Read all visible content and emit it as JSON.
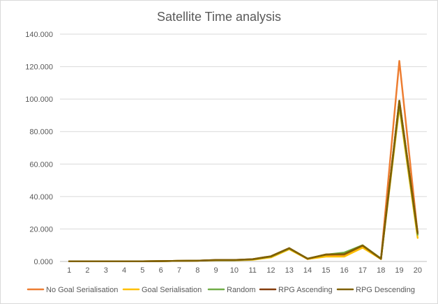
{
  "chart_data": {
    "type": "line",
    "title": "Satellite Time analysis",
    "xlabel": "",
    "ylabel": "",
    "categories": [
      "1",
      "2",
      "3",
      "4",
      "5",
      "6",
      "7",
      "8",
      "9",
      "10",
      "11",
      "12",
      "13",
      "14",
      "15",
      "16",
      "17",
      "18",
      "19",
      "20"
    ],
    "ylim": [
      0,
      140
    ],
    "yticks": [
      0,
      20,
      40,
      60,
      80,
      100,
      120,
      140
    ],
    "ytick_labels": [
      "0.000",
      "20.000",
      "40.000",
      "60.000",
      "80.000",
      "100.000",
      "120.000",
      "140.000"
    ],
    "grid": true,
    "legend_position": "bottom",
    "series": [
      {
        "name": "No Goal Serialisation",
        "color": "#ED7D31",
        "values": [
          0.1,
          0.1,
          0.1,
          0.1,
          0.1,
          0.2,
          0.4,
          0.5,
          0.8,
          0.8,
          1.2,
          3.0,
          8.0,
          1.5,
          3.5,
          3.5,
          9.0,
          1.5,
          123.5,
          17.0
        ]
      },
      {
        "name": "Goal Serialisation",
        "color": "#FFC000",
        "values": [
          0.1,
          0.1,
          0.1,
          0.1,
          0.1,
          0.2,
          0.4,
          0.5,
          0.7,
          0.7,
          1.0,
          2.5,
          7.5,
          1.5,
          3.0,
          3.0,
          8.5,
          1.5,
          95.0,
          14.5
        ]
      },
      {
        "name": "Random",
        "color": "#70AD47",
        "values": [
          0.1,
          0.1,
          0.1,
          0.1,
          0.1,
          0.2,
          0.4,
          0.5,
          0.8,
          0.8,
          1.3,
          3.0,
          8.0,
          1.8,
          4.2,
          5.5,
          10.0,
          1.8,
          97.0,
          16.5
        ]
      },
      {
        "name": "RPG Ascending",
        "color": "#843C0C",
        "values": [
          0.1,
          0.1,
          0.1,
          0.1,
          0.1,
          0.2,
          0.4,
          0.5,
          0.9,
          0.9,
          1.4,
          3.2,
          8.2,
          1.7,
          4.3,
          4.5,
          9.8,
          1.6,
          99.0,
          17.5
        ]
      },
      {
        "name": "RPG Descending",
        "color": "#7F6000",
        "values": [
          0.1,
          0.1,
          0.1,
          0.1,
          0.1,
          0.2,
          0.4,
          0.5,
          0.9,
          0.9,
          1.4,
          3.2,
          8.2,
          1.7,
          4.3,
          4.5,
          9.8,
          1.6,
          99.0,
          17.5
        ]
      }
    ]
  }
}
